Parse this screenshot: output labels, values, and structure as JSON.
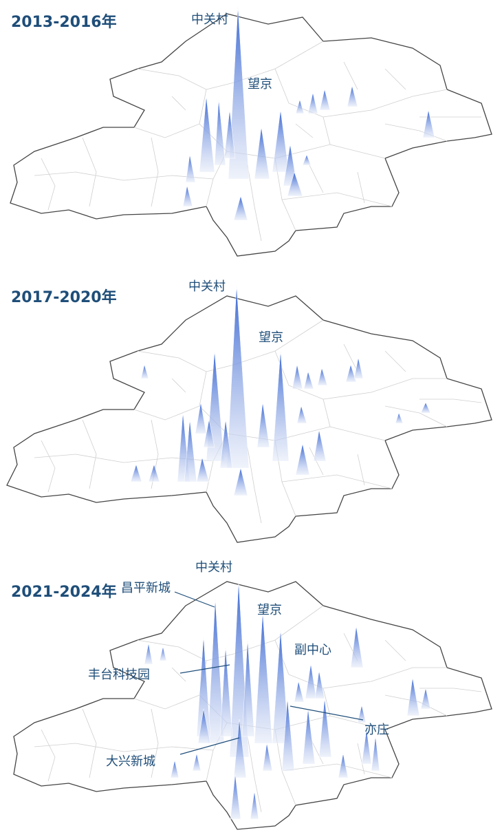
{
  "colors": {
    "title": "#1f4e79",
    "label": "#1f4e79",
    "boundary_outer": "#444444",
    "boundary_inner": "#cfcfcf",
    "peak_top": "#2f5fd0",
    "peak_base": "#dfe6f7"
  },
  "panels": [
    {
      "title": "2013-2016年",
      "labels": [
        {
          "id": "zhongguancun",
          "text": "中关村"
        },
        {
          "id": "wangjing",
          "text": "望京"
        }
      ]
    },
    {
      "title": "2017-2020年",
      "labels": [
        {
          "id": "zhongguancun",
          "text": "中关村"
        },
        {
          "id": "wangjing",
          "text": "望京"
        }
      ]
    },
    {
      "title": "2021-2024年",
      "labels": [
        {
          "id": "zhongguancun",
          "text": "中关村"
        },
        {
          "id": "changping",
          "text": "昌平新城"
        },
        {
          "id": "wangjing",
          "text": "望京"
        },
        {
          "id": "fuzhongxin",
          "text": "副中心"
        },
        {
          "id": "fengtai",
          "text": "丰台科技园"
        },
        {
          "id": "yizhuang",
          "text": "亦庄"
        },
        {
          "id": "daxing",
          "text": "大兴新城"
        }
      ]
    }
  ]
}
